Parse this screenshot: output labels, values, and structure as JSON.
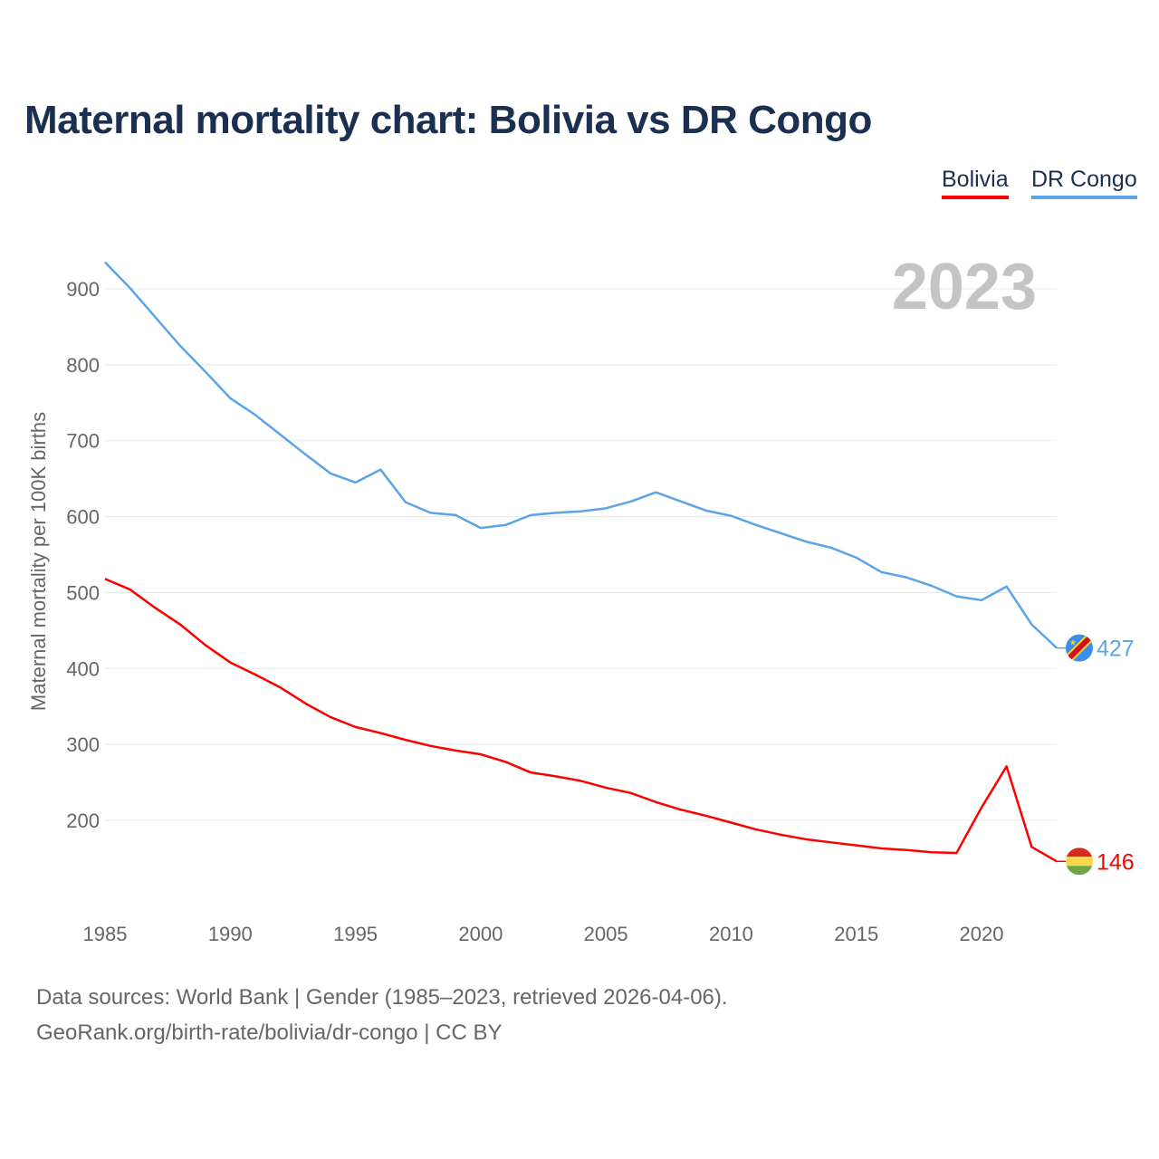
{
  "chart_data": {
    "type": "line",
    "title": "Maternal mortality chart: Bolivia vs DR Congo",
    "xlabel": "",
    "ylabel": "Maternal mortality per 100K births",
    "year_label": "2023",
    "xlim": [
      1985,
      2023
    ],
    "ylim": [
      100,
      950
    ],
    "yticks": [
      200,
      300,
      400,
      500,
      600,
      700,
      800,
      900
    ],
    "xticks": [
      1985,
      1990,
      1995,
      2000,
      2005,
      2010,
      2015,
      2020
    ],
    "grid": true,
    "legend_placement": "top-right",
    "x": [
      1985,
      1986,
      1987,
      1988,
      1989,
      1990,
      1991,
      1992,
      1993,
      1994,
      1995,
      1996,
      1997,
      1998,
      1999,
      2000,
      2001,
      2002,
      2003,
      2004,
      2005,
      2006,
      2007,
      2008,
      2009,
      2010,
      2011,
      2012,
      2013,
      2014,
      2015,
      2016,
      2017,
      2018,
      2019,
      2020,
      2021,
      2022,
      2023
    ],
    "series": [
      {
        "name": "Bolivia",
        "color": "#ff0000",
        "end_label": "146",
        "values": [
          518,
          504,
          480,
          458,
          431,
          408,
          392,
          375,
          354,
          336,
          323,
          315,
          306,
          298,
          292,
          287,
          277,
          263,
          258,
          252,
          243,
          236,
          224,
          214,
          206,
          197,
          188,
          181,
          175,
          171,
          167,
          163,
          161,
          158,
          157,
          217,
          271,
          165,
          146
        ]
      },
      {
        "name": "DR Congo",
        "color": "#5ba4ea",
        "end_label": "427",
        "values": [
          935,
          901,
          863,
          825,
          791,
          756,
          734,
          708,
          682,
          657,
          645,
          662,
          619,
          605,
          602,
          585,
          589,
          602,
          605,
          607,
          611,
          620,
          632,
          620,
          608,
          601,
          589,
          578,
          567,
          559,
          546,
          527,
          520,
          509,
          495,
          490,
          508,
          458,
          427
        ]
      }
    ]
  },
  "footer": {
    "line1": "Data sources: World Bank | Gender (1985–2023, retrieved 2026-04-06).",
    "line2": "GeoRank.org/birth-rate/bolivia/dr-congo | CC BY"
  }
}
